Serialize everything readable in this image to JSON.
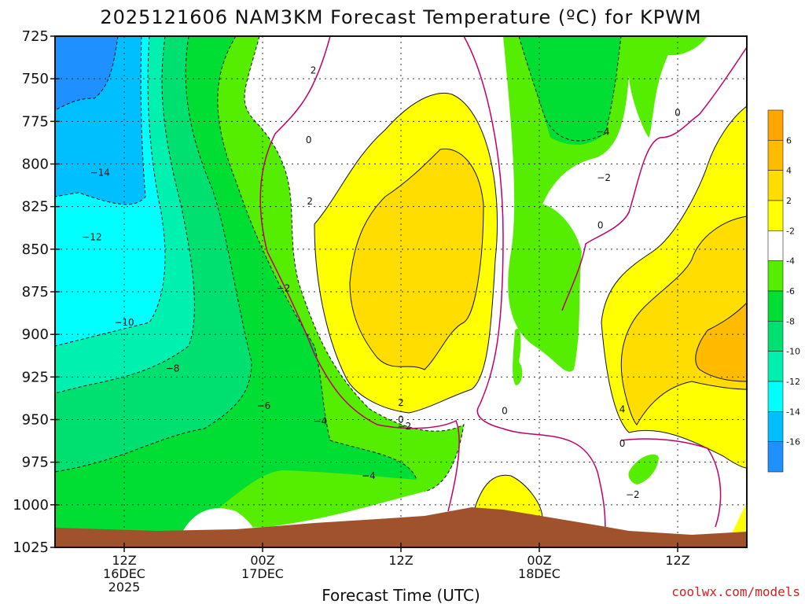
{
  "chart_data": {
    "type": "heatmap",
    "title": "2025121606 NAM3KM Forecast Temperature (ºC) for KPWM",
    "xlabel": "Forecast Time (UTC)",
    "ylabel": "",
    "credit": "coolwx.com/models",
    "y_ticks": [
      725,
      750,
      775,
      800,
      825,
      850,
      875,
      900,
      925,
      950,
      975,
      1000,
      1025
    ],
    "ylim": [
      1025,
      725
    ],
    "xlim_hours": [
      0,
      60
    ],
    "x_ticks": [
      {
        "hour": 6,
        "lines": [
          "12Z",
          "16DEC",
          "2025"
        ]
      },
      {
        "hour": 18,
        "lines": [
          "00Z",
          "17DEC"
        ]
      },
      {
        "hour": 30,
        "lines": [
          "12Z"
        ]
      },
      {
        "hour": 42,
        "lines": [
          "00Z",
          "18DEC"
        ]
      },
      {
        "hour": 54,
        "lines": [
          "12Z"
        ]
      }
    ],
    "colorbar": {
      "levels": [
        -16,
        -14,
        -12,
        -10,
        -8,
        -6,
        -4,
        -2,
        2,
        4,
        6
      ],
      "colors": [
        "#1e90ff",
        "#00bfff",
        "#00ffff",
        "#00f0b0",
        "#00e070",
        "#00dd33",
        "#55ee00",
        "#ffffff",
        "#ffff00",
        "#ffdd00",
        "#ffbb00",
        "#ffa500"
      ]
    },
    "grid": true,
    "contour_labels": [
      {
        "text": "2",
        "t": 22.4,
        "p": 745
      },
      {
        "text": "0",
        "t": 22.0,
        "p": 786
      },
      {
        "text": "2",
        "t": 22.1,
        "p": 822
      },
      {
        "text": "−2",
        "t": 19.8,
        "p": 873
      },
      {
        "text": "−14",
        "t": 3.9,
        "p": 805
      },
      {
        "text": "−12",
        "t": 3.2,
        "p": 843
      },
      {
        "text": "−10",
        "t": 6.0,
        "p": 893
      },
      {
        "text": "−8",
        "t": 10.2,
        "p": 920
      },
      {
        "text": "−6",
        "t": 18.1,
        "p": 942
      },
      {
        "text": "−4",
        "t": 23.0,
        "p": 951
      },
      {
        "text": "−4",
        "t": 27.2,
        "p": 983
      },
      {
        "text": "2",
        "t": 30.0,
        "p": 940
      },
      {
        "text": "0",
        "t": 30.0,
        "p": 950
      },
      {
        "text": "−2",
        "t": 30.3,
        "p": 954
      },
      {
        "text": "0",
        "t": 39.0,
        "p": 945
      },
      {
        "text": "−4",
        "t": 47.5,
        "p": 781
      },
      {
        "text": "−2",
        "t": 47.6,
        "p": 808
      },
      {
        "text": "0",
        "t": 54.0,
        "p": 770
      },
      {
        "text": "0",
        "t": 47.3,
        "p": 836
      },
      {
        "text": "4",
        "t": 49.2,
        "p": 944
      },
      {
        "text": "0",
        "t": 49.2,
        "p": 964
      },
      {
        "text": "−2",
        "t": 50.1,
        "p": 994
      }
    ]
  }
}
